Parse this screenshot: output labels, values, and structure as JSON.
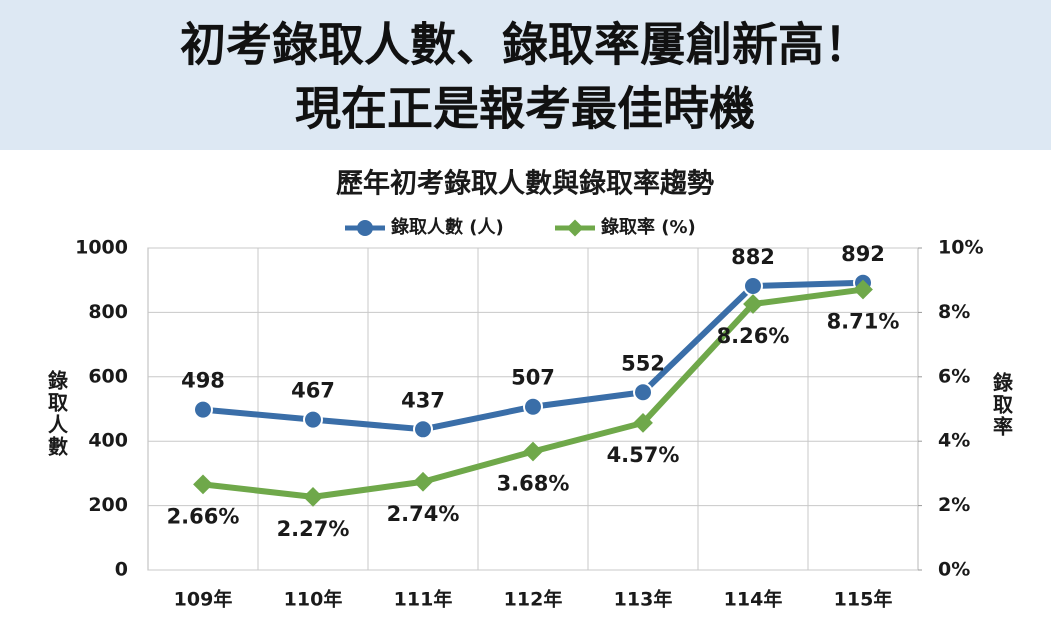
{
  "header": {
    "lines": [
      "初考錄取人數、錄取率屢創新高！",
      "現在正是報考最佳時機"
    ]
  },
  "chart_data": {
    "type": "line",
    "title": "歷年初考錄取人數與錄取率趨勢",
    "categories": [
      "109年",
      "110年",
      "111年",
      "112年",
      "113年",
      "114年",
      "115年"
    ],
    "series": [
      {
        "name": "錄取人數 (人)",
        "color": "#3a6ea8",
        "values": [
          498,
          467,
          437,
          507,
          552,
          882,
          892
        ]
      },
      {
        "name": "錄取率 (%)",
        "color": "#6fa84a",
        "axis": "y2",
        "values": [
          2.66,
          2.27,
          2.74,
          3.68,
          4.57,
          8.26,
          8.71
        ],
        "value_labels": [
          "2.66%",
          "2.27%",
          "2.74%",
          "3.68%",
          "4.57%",
          "8.26%",
          "8.71%"
        ]
      }
    ],
    "ylabel": "錄取人數",
    "y2label": "錄取率",
    "ylim": [
      0,
      1000
    ],
    "yticks": [
      0,
      200,
      400,
      600,
      800,
      1000
    ],
    "y2lim": [
      0,
      10
    ],
    "y2ticks": [
      {
        "value": 0,
        "label": "0%"
      },
      {
        "value": 2,
        "label": "2%"
      },
      {
        "value": 4,
        "label": "4%"
      },
      {
        "value": 6,
        "label": "6%"
      },
      {
        "value": 8,
        "label": "8%"
      },
      {
        "value": 10,
        "label": "10%"
      }
    ],
    "grid": true,
    "legend": "top"
  }
}
